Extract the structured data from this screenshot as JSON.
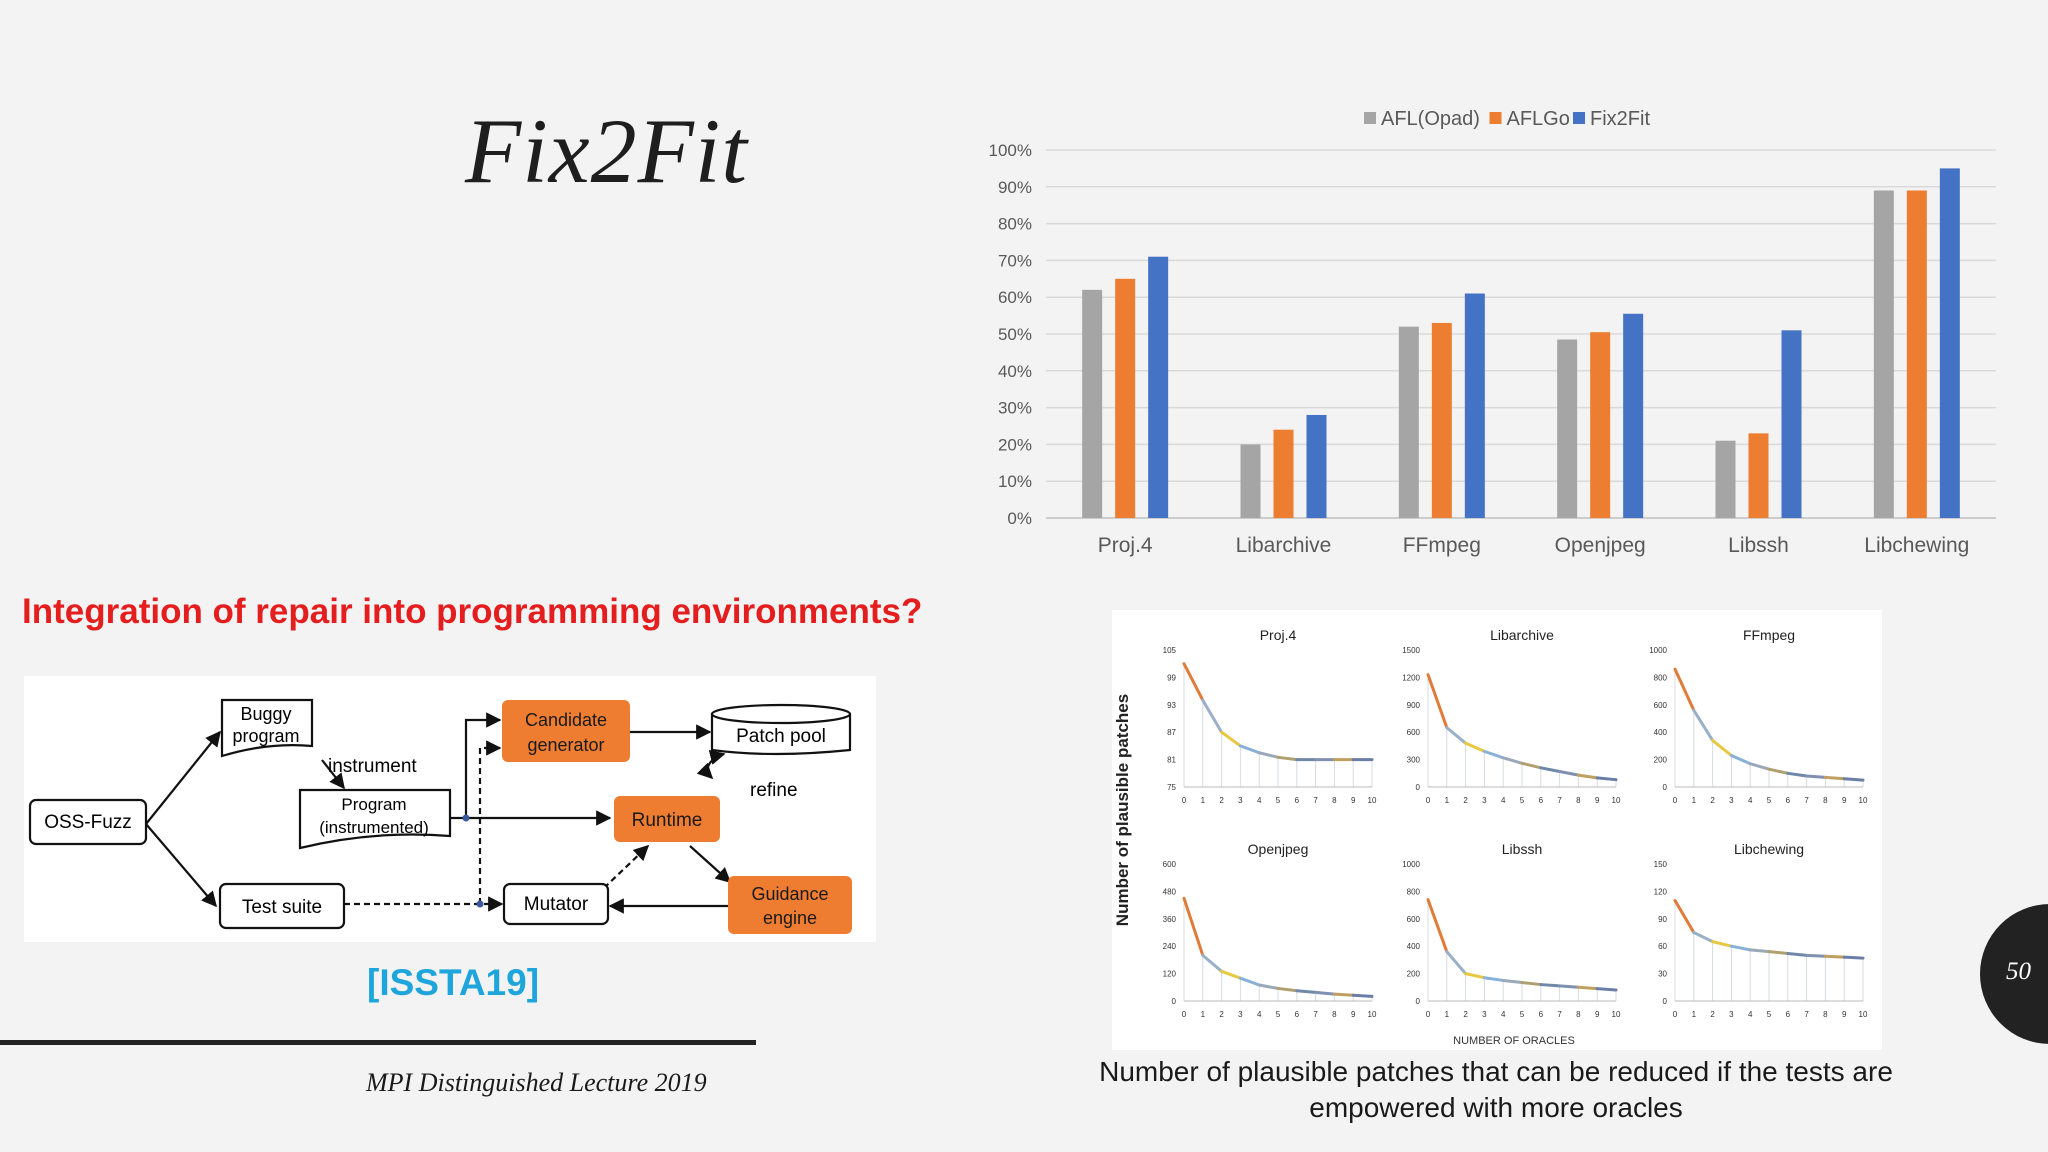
{
  "slide": {
    "title": "Fix2Fit",
    "question": "Integration of repair into programming environments?",
    "citation": "[ISSTA19]",
    "footer": "MPI Distinguished Lecture 2019",
    "page_number": "50",
    "caption_line1": "Number of plausible patches that can be reduced if the tests are",
    "caption_line2": "empowered with more oracles"
  },
  "diagram": {
    "oss_fuzz": "OSS-Fuzz",
    "buggy_program_1": "Buggy",
    "buggy_program_2": "program",
    "instrument": "instrument",
    "program_instr_1": "Program",
    "program_instr_2": "(instrumented)",
    "test_suite": "Test suite",
    "candidate_1": "Candidate",
    "candidate_2": "generator",
    "patch_pool": "Patch pool",
    "refine": "refine",
    "runtime": "Runtime",
    "mutator": "Mutator",
    "guidance_1": "Guidance",
    "guidance_2": "engine",
    "accent_color": "#ee7d31"
  },
  "chart_data": [
    {
      "type": "bar",
      "categories": [
        "Proj.4",
        "Libarchive",
        "FFmpeg",
        "Openjpeg",
        "Libssh",
        "Libchewing"
      ],
      "series": [
        {
          "name": "AFL(Opad)",
          "color": "#a5a5a5",
          "values": [
            62,
            20,
            52,
            48.5,
            21,
            89
          ]
        },
        {
          "name": "AFLGo",
          "color": "#ed7d31",
          "values": [
            65,
            24,
            53,
            50.5,
            23,
            89
          ]
        },
        {
          "name": "Fix2Fit",
          "color": "#4472c4",
          "values": [
            71,
            28,
            61,
            55.5,
            51,
            95
          ]
        }
      ],
      "ylim": [
        0,
        100
      ],
      "ytick_labels": [
        "0%",
        "10%",
        "20%",
        "30%",
        "40%",
        "50%",
        "60%",
        "70%",
        "80%",
        "90%",
        "100%"
      ],
      "legend": "top",
      "grid": true
    },
    {
      "type": "line",
      "ylabel": "Number of plausible patches",
      "xlabel": "NUMBER OF ORACLES",
      "x": [
        0,
        1,
        2,
        3,
        4,
        5,
        6,
        7,
        8,
        9,
        10
      ],
      "panels": [
        {
          "name": "Proj.4",
          "ylim": [
            75,
            105
          ],
          "yticks": [
            "105",
            "99",
            "93",
            "87",
            "81",
            "75"
          ],
          "values": [
            102,
            94,
            87,
            84,
            82.5,
            81.5,
            81,
            81,
            81,
            81,
            81
          ]
        },
        {
          "name": "Libarchive",
          "ylim": [
            0,
            1500
          ],
          "yticks": [
            "1500",
            "1200",
            "900",
            "600",
            "300",
            "0"
          ],
          "values": [
            1230,
            650,
            480,
            390,
            320,
            260,
            210,
            170,
            130,
            100,
            80
          ]
        },
        {
          "name": "FFmpeg",
          "ylim": [
            0,
            1000
          ],
          "yticks": [
            "1000",
            "800",
            "600",
            "400",
            "200",
            "0"
          ],
          "values": [
            860,
            560,
            340,
            230,
            170,
            130,
            100,
            80,
            70,
            60,
            50
          ]
        },
        {
          "name": "Openjpeg",
          "ylim": [
            0,
            600
          ],
          "yticks": [
            "600",
            "480",
            "360",
            "240",
            "120",
            "0"
          ],
          "values": [
            450,
            200,
            130,
            100,
            70,
            55,
            45,
            38,
            30,
            25,
            20
          ]
        },
        {
          "name": "Libssh",
          "ylim": [
            0,
            1000
          ],
          "yticks": [
            "1000",
            "800",
            "600",
            "400",
            "200",
            "0"
          ],
          "values": [
            740,
            360,
            200,
            170,
            150,
            135,
            120,
            110,
            100,
            90,
            80
          ]
        },
        {
          "name": "Libchewing",
          "ylim": [
            0,
            150
          ],
          "yticks": [
            "150",
            "120",
            "90",
            "60",
            "30",
            "0"
          ],
          "values": [
            110,
            75,
            65,
            60,
            56,
            54,
            52,
            50,
            49,
            48,
            47
          ]
        }
      ]
    }
  ]
}
